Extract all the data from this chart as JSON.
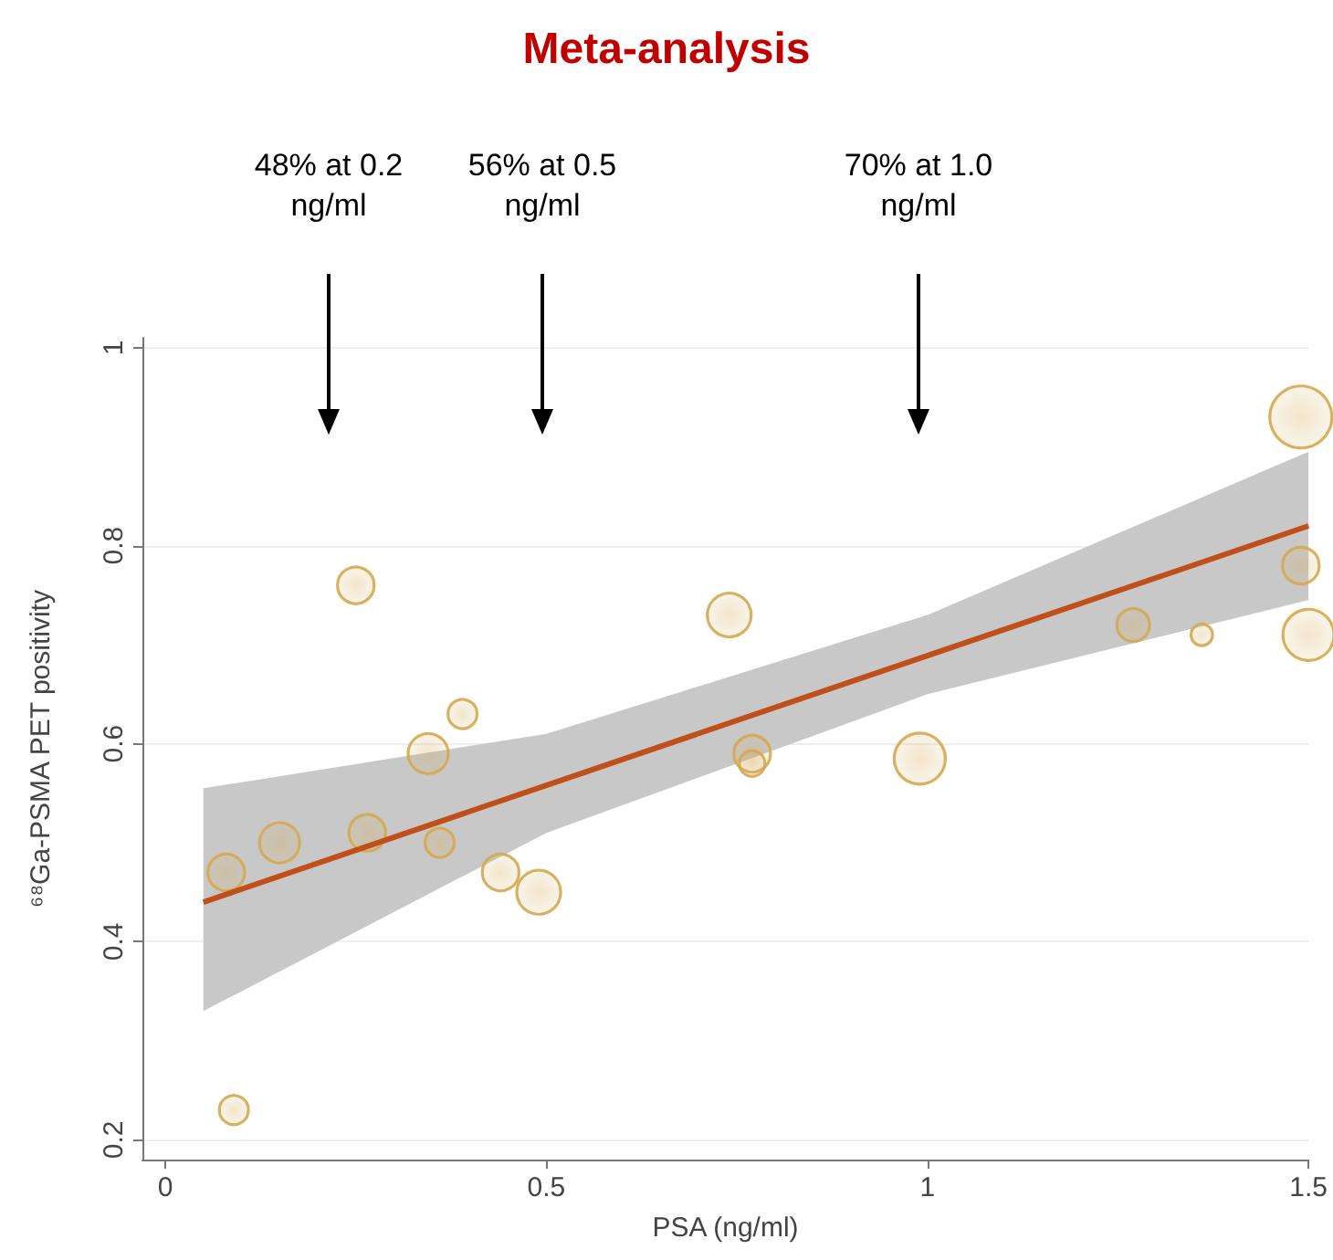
{
  "chart_data": {
    "type": "scatter",
    "title": "Meta-analysis",
    "xlabel": "PSA (ng/ml)",
    "ylabel": "⁶⁸Ga-PSMA PET positivity",
    "xlim": [
      -0.03,
      1.5
    ],
    "xticks": [
      0,
      0.5,
      1,
      1.5
    ],
    "ylim": [
      0.18,
      1.01
    ],
    "yticks": [
      0.2,
      0.4,
      0.6,
      0.8,
      1
    ],
    "grid": "y",
    "marker": "circle",
    "annotations": [
      "48% at 0.2 ng/ml",
      "56% at 0.5 ng/ml",
      "70% at 1.0 ng/ml"
    ],
    "series": [
      {
        "color": "#d4a850",
        "x": [
          0.09,
          0.08,
          0.15,
          0.265,
          0.36,
          0.44,
          0.49,
          0.25,
          0.345,
          0.39,
          0.74,
          0.77,
          0.77,
          0.99,
          1.27,
          1.36,
          1.49,
          1.49,
          1.5
        ],
        "values": [
          0.23,
          0.47,
          0.5,
          0.51,
          0.5,
          0.47,
          0.45,
          0.76,
          0.59,
          0.63,
          0.73,
          0.59,
          0.58,
          0.585,
          0.72,
          0.71,
          0.93,
          0.78,
          0.71
        ],
        "sizes": [
          0.22,
          0.35,
          0.42,
          0.35,
          0.22,
          0.35,
          0.5,
          0.35,
          0.42,
          0.22,
          0.5,
          0.35,
          0.17,
          0.68,
          0.28,
          0.12,
          1,
          0.35,
          0.68
        ]
      },
      {
        "type": "line",
        "color": "#c0501a",
        "line_style": "solid",
        "marker": "none",
        "x": [
          0.05,
          0.5,
          1.0,
          1.5
        ],
        "values": [
          0.44,
          0.558,
          0.689,
          0.82
        ],
        "lower": [
          0.33,
          0.51,
          0.65,
          0.745
        ],
        "upper": [
          0.555,
          0.61,
          0.73,
          0.895
        ]
      }
    ]
  }
}
